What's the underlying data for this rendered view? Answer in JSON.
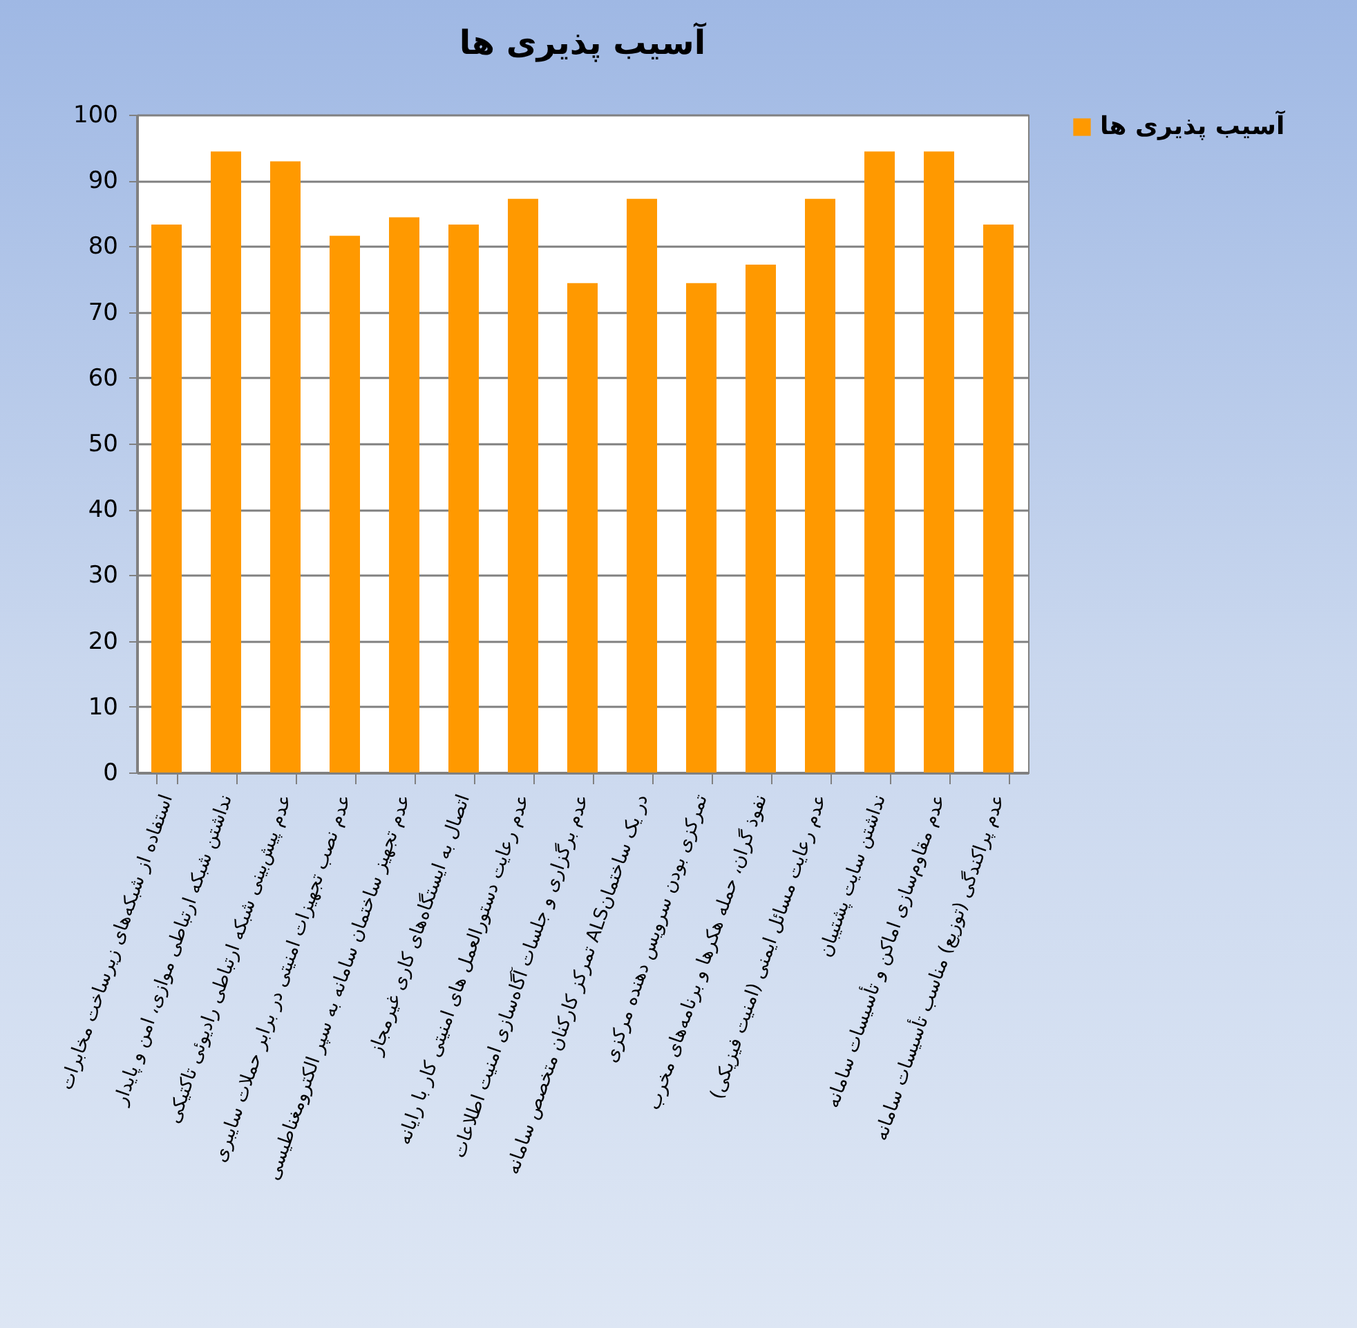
{
  "chart_data": {
    "type": "bar",
    "title": "آسیب پذیری ها",
    "categories": [
      "استفاده از شبکه‌های زیرساخت مخابرات",
      "نداشتن شبکه ارتباطی موازی، امن و پایدار",
      "عدم پیش‌بینی شبکه ارتباطی رادیوئی تاکتیکی",
      "عدم نصب تجهیزات امنیتی در برابر حملات سایبری",
      "عدم تجهیز ساختمان سامانه به سپر الکترومغناطیسی",
      "اتصال به ایستگاه‌های کاری غیرمجاز",
      "عدم رعایت دستورالعمل های امنیتی کار با رایانه",
      "عدم برگزاری  و جلسات آگاه‌سازی امنیت اطلاعات",
      "تمرکز کارکنان متخصص سامانه ALSدر یک ساختمان",
      "تمرکزی بودن سرویس دهنده مرکزی",
      "نفوذ گران، حمله هکرها و برنامه‌های مخرب",
      "عدم رعایت مسائل ایمنی (امنیت فیزیکی)",
      "نداشتن سایت پشتیبان",
      "عدم مقاوم‌سازی اماکن و تأسیسات سامانه",
      "عدم پراکندگی (توزیع) مناسب تأسیسات سامانه"
    ],
    "series": [
      {
        "name": "آسیب پذیری ها",
        "color": "#ff9900",
        "values": [
          83.3,
          94.4,
          92.9,
          81.6,
          84.4,
          83.3,
          87.2,
          74.4,
          87.2,
          74.4,
          77.2,
          87.2,
          94.4,
          94.4,
          83.3
        ]
      }
    ],
    "ylim": [
      0,
      100
    ],
    "yticks": [
      0,
      10,
      20,
      30,
      40,
      50,
      60,
      70,
      80,
      90,
      100
    ],
    "grid": "y",
    "legend": "right"
  }
}
